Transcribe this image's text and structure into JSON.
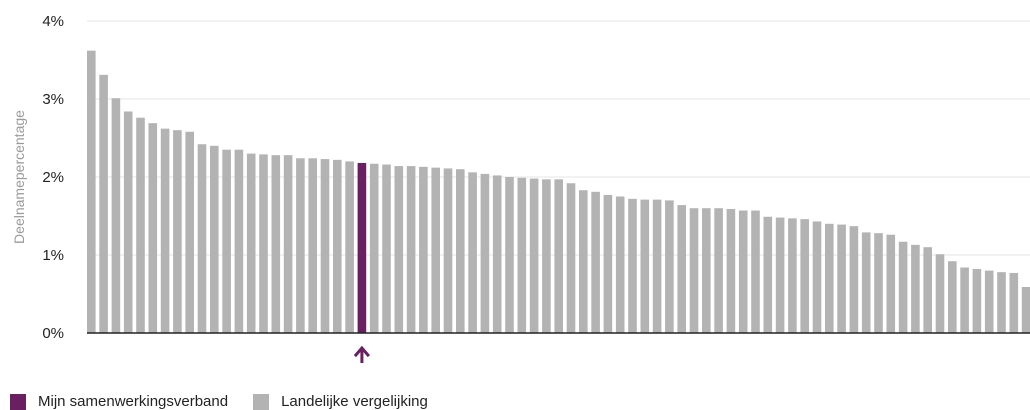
{
  "chart_data": {
    "type": "bar",
    "ylabel": "Deelnamepercentage",
    "xlabel": "",
    "ylim": [
      0,
      4
    ],
    "yticks": [
      "0%",
      "1%",
      "2%",
      "3%",
      "4%"
    ],
    "ytick_values": [
      0,
      1,
      2,
      3,
      4
    ],
    "grid": true,
    "highlight_index": 22,
    "highlight_marker": "up-arrow-icon",
    "colors": {
      "highlight": "#6b1f63",
      "comparison": "#b3b3b3",
      "axis": "#222222",
      "grid": "#e6e6e6"
    },
    "legend": [
      {
        "label": "Mijn samenwerkingsverband",
        "color": "#6b1f63"
      },
      {
        "label": "Landelijke vergelijking",
        "color": "#b3b3b3"
      }
    ],
    "values": [
      3.62,
      3.31,
      3.01,
      2.84,
      2.76,
      2.69,
      2.62,
      2.6,
      2.58,
      2.42,
      2.4,
      2.35,
      2.35,
      2.3,
      2.29,
      2.28,
      2.28,
      2.24,
      2.24,
      2.23,
      2.22,
      2.2,
      2.18,
      2.17,
      2.16,
      2.14,
      2.14,
      2.13,
      2.12,
      2.11,
      2.1,
      2.06,
      2.04,
      2.02,
      2.0,
      1.99,
      1.98,
      1.97,
      1.97,
      1.92,
      1.83,
      1.81,
      1.77,
      1.75,
      1.72,
      1.71,
      1.71,
      1.7,
      1.64,
      1.6,
      1.6,
      1.6,
      1.59,
      1.57,
      1.57,
      1.49,
      1.48,
      1.47,
      1.46,
      1.43,
      1.4,
      1.39,
      1.37,
      1.29,
      1.28,
      1.26,
      1.17,
      1.13,
      1.1,
      1.01,
      0.92,
      0.84,
      0.82,
      0.8,
      0.78,
      0.77,
      0.59
    ]
  }
}
